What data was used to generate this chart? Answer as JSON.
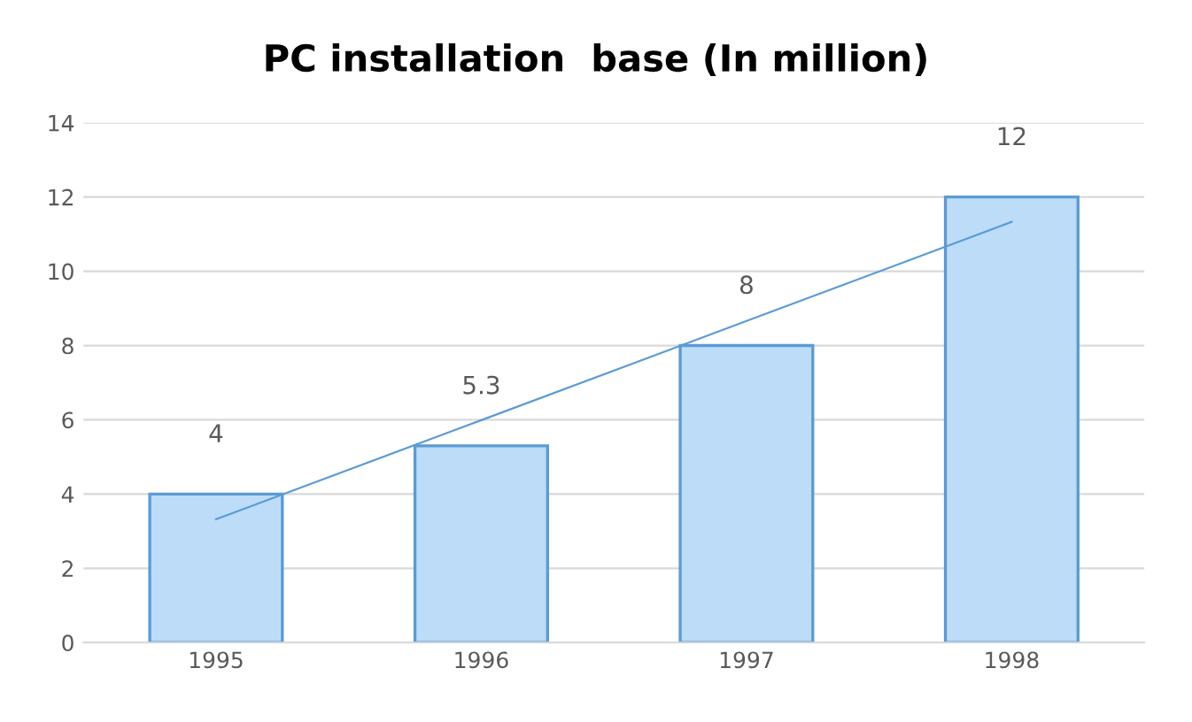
{
  "chart_data": {
    "type": "bar",
    "title": "PC installation  base (In million)",
    "categories": [
      "1995",
      "1996",
      "1997",
      "1998"
    ],
    "series": [
      {
        "color": "#bcdcf8",
        "values": [
          4,
          5.3,
          8,
          12
        ],
        "value_labels": [
          "4",
          "5.3",
          "8",
          "12"
        ]
      },
      {
        "type": "line",
        "color": "#5b9bd5",
        "values": [
          3.32,
          5.99,
          8.66,
          11.33
        ]
      }
    ],
    "ylim": [
      0,
      14
    ],
    "yticks": [
      0,
      2,
      4,
      6,
      8,
      10,
      12,
      14
    ],
    "grid": "y"
  }
}
